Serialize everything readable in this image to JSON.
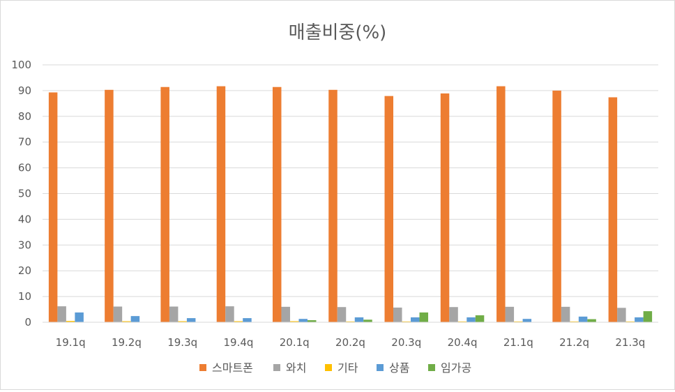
{
  "chart_data": {
    "type": "bar",
    "title": "매출비중(%)",
    "xlabel": "",
    "ylabel": "",
    "ylim": [
      0,
      100
    ],
    "yticks": [
      0,
      10,
      20,
      30,
      40,
      50,
      60,
      70,
      80,
      90,
      100
    ],
    "grid": true,
    "legend_position": "bottom",
    "categories": [
      "19.1q",
      "19.2q",
      "19.3q",
      "19.4q",
      "20.1q",
      "20.2q",
      "20.3q",
      "20.4q",
      "21.1q",
      "21.2q",
      "21.3q"
    ],
    "series": [
      {
        "name": "스마트폰",
        "color": "#ED7D31",
        "values": [
          89.3,
          90.3,
          91.4,
          91.7,
          91.4,
          90.3,
          87.9,
          88.9,
          91.7,
          90.0,
          87.4
        ]
      },
      {
        "name": "와치",
        "color": "#A5A5A5",
        "values": [
          6.2,
          6.1,
          6.1,
          6.2,
          6.0,
          5.9,
          5.7,
          5.9,
          6.0,
          6.0,
          5.6
        ]
      },
      {
        "name": "기타",
        "color": "#FFC000",
        "values": [
          0.5,
          0.4,
          0.4,
          0.4,
          0.4,
          0.3,
          0.3,
          0.3,
          0.3,
          0.3,
          0.3
        ]
      },
      {
        "name": "상품",
        "color": "#5B9BD5",
        "values": [
          3.8,
          2.4,
          1.6,
          1.6,
          1.3,
          1.9,
          1.9,
          1.9,
          1.3,
          2.2,
          1.9
        ]
      },
      {
        "name": "임가공",
        "color": "#70AD47",
        "values": [
          0.0,
          0.0,
          0.0,
          0.0,
          0.8,
          1.0,
          3.8,
          2.7,
          0.0,
          1.2,
          4.3
        ]
      }
    ]
  }
}
